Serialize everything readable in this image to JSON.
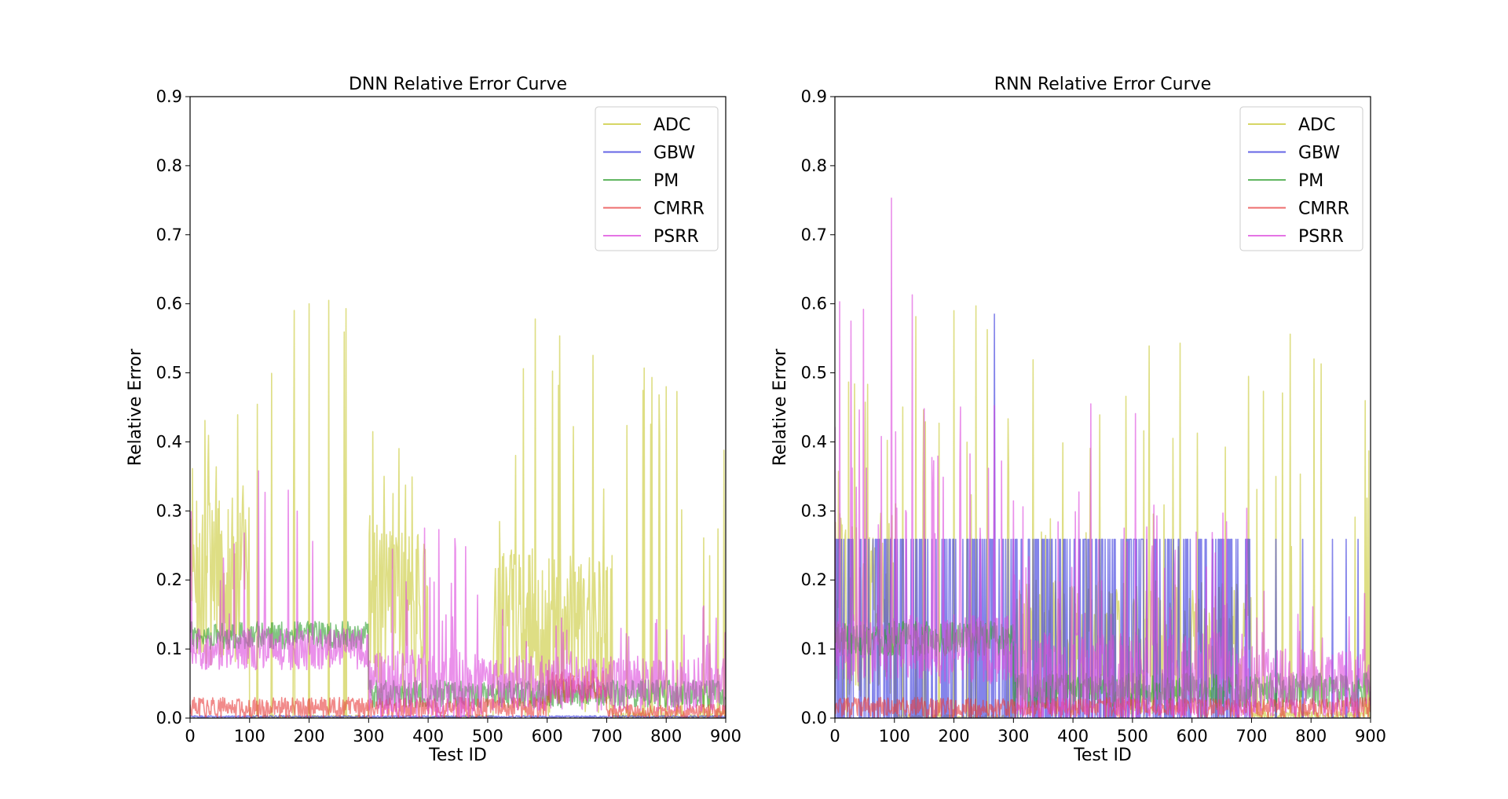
{
  "figure": {
    "charts": [
      {
        "id": "dnn",
        "title": "DNN Relative Error Curve",
        "xlabel": "Test ID",
        "ylabel": "Relative Error",
        "xlim": [
          0,
          900
        ],
        "ylim": [
          0,
          0.9
        ],
        "xticks": [
          0,
          100,
          200,
          300,
          400,
          500,
          600,
          700,
          800,
          900
        ],
        "yticks": [
          0.0,
          0.1,
          0.2,
          0.3,
          0.4,
          0.5,
          0.6,
          0.7,
          0.8,
          0.9
        ],
        "legend": [
          "ADC",
          "GBW",
          "PM",
          "CMRR",
          "PSRR"
        ]
      },
      {
        "id": "rnn",
        "title": "RNN Relative Error Curve",
        "xlabel": "Test ID",
        "ylabel": "Relative Error",
        "xlim": [
          0,
          900
        ],
        "ylim": [
          0,
          0.9
        ],
        "xticks": [
          0,
          100,
          200,
          300,
          400,
          500,
          600,
          700,
          800,
          900
        ],
        "yticks": [
          0.0,
          0.1,
          0.2,
          0.3,
          0.4,
          0.5,
          0.6,
          0.7,
          0.8,
          0.9
        ],
        "legend": [
          "ADC",
          "GBW",
          "PM",
          "CMRR",
          "PSRR"
        ]
      }
    ]
  },
  "chart_data": [
    {
      "type": "line",
      "title": "DNN Relative Error Curve",
      "xlabel": "Test ID",
      "ylabel": "Relative Error",
      "xlim": [
        0,
        900
      ],
      "ylim": [
        0,
        0.9
      ],
      "grid": false,
      "legend_position": "top-right",
      "series": [
        {
          "name": "ADC",
          "color": "#c8c832",
          "alpha": 0.6,
          "segments": [
            {
              "x": [
                0,
                100
              ],
              "base": 0.2,
              "spread": 0.25,
              "spike_prob": 0.15,
              "spike_max": 0.49
            },
            {
              "x": [
                100,
                300
              ],
              "base": 0.0,
              "spread": 0.01,
              "spike_prob": 0.03,
              "spike_max": 0.6
            },
            {
              "x": [
                300,
                400
              ],
              "base": 0.15,
              "spread": 0.25,
              "spike_prob": 0.12,
              "spike_max": 0.43
            },
            {
              "x": [
                400,
                510
              ],
              "base": 0.0,
              "spread": 0.01,
              "spike_prob": 0.0,
              "spike_max": 0.0
            },
            {
              "x": [
                510,
                710
              ],
              "base": 0.12,
              "spread": 0.25,
              "spike_prob": 0.08,
              "spike_max": 0.58
            },
            {
              "x": [
                710,
                900
              ],
              "base": 0.0,
              "spread": 0.02,
              "spike_prob": 0.05,
              "spike_max": 0.5
            }
          ],
          "peaks": [
            [
              200,
              0.6
            ],
            [
              233,
              0.605
            ],
            [
              262,
              0.593
            ],
            [
              580,
              0.578
            ],
            [
              560,
              0.506
            ],
            [
              763,
              0.507
            ],
            [
              800,
              0.48
            ],
            [
              818,
              0.473
            ],
            [
              897,
              0.388
            ]
          ]
        },
        {
          "name": "GBW",
          "color": "#3232dc",
          "alpha": 0.6,
          "segments": [
            {
              "x": [
                0,
                900
              ],
              "base": 0.002,
              "spread": 0.003,
              "spike_prob": 0.0,
              "spike_max": 0.0
            }
          ],
          "peaks": []
        },
        {
          "name": "PM",
          "color": "#2e9e2e",
          "alpha": 0.6,
          "segments": [
            {
              "x": [
                0,
                300
              ],
              "base": 0.12,
              "spread": 0.04,
              "spike_prob": 0.0,
              "spike_max": 0.0
            },
            {
              "x": [
                300,
                900
              ],
              "base": 0.035,
              "spread": 0.04,
              "spike_prob": 0.0,
              "spike_max": 0.0
            }
          ],
          "peaks": []
        },
        {
          "name": "CMRR",
          "color": "#e83c3c",
          "alpha": 0.6,
          "segments": [
            {
              "x": [
                0,
                600
              ],
              "base": 0.015,
              "spread": 0.03,
              "spike_prob": 0.0,
              "spike_max": 0.0
            },
            {
              "x": [
                600,
                700
              ],
              "base": 0.045,
              "spread": 0.05,
              "spike_prob": 0.0,
              "spike_max": 0.0
            },
            {
              "x": [
                700,
                900
              ],
              "base": 0.01,
              "spread": 0.02,
              "spike_prob": 0.0,
              "spike_max": 0.0
            }
          ],
          "peaks": []
        },
        {
          "name": "PSRR",
          "color": "#dc46dc",
          "alpha": 0.6,
          "segments": [
            {
              "x": [
                0,
                300
              ],
              "base": 0.1,
              "spread": 0.06,
              "spike_prob": 0.05,
              "spike_max": 0.33
            },
            {
              "x": [
                300,
                500
              ],
              "base": 0.05,
              "spread": 0.1,
              "spike_prob": 0.08,
              "spike_max": 0.28
            },
            {
              "x": [
                500,
                900
              ],
              "base": 0.05,
              "spread": 0.08,
              "spike_prob": 0.05,
              "spike_max": 0.18
            }
          ],
          "peaks": [
            [
              115,
              0.358
            ],
            [
              165,
              0.33
            ],
            [
              418,
              0.273
            ],
            [
              445,
              0.26
            ]
          ]
        }
      ]
    },
    {
      "type": "line",
      "title": "RNN Relative Error Curve",
      "xlabel": "Test ID",
      "ylabel": "Relative Error",
      "xlim": [
        0,
        900
      ],
      "ylim": [
        0,
        0.9
      ],
      "grid": false,
      "legend_position": "top-right",
      "series": [
        {
          "name": "ADC",
          "color": "#c8c832",
          "alpha": 0.6,
          "segments": [
            {
              "x": [
                0,
                100
              ],
              "base": 0.15,
              "spread": 0.3,
              "spike_prob": 0.1,
              "spike_max": 0.5
            },
            {
              "x": [
                100,
                300
              ],
              "base": 0.0,
              "spread": 0.01,
              "spike_prob": 0.04,
              "spike_max": 0.59
            },
            {
              "x": [
                300,
                700
              ],
              "base": 0.1,
              "spread": 0.2,
              "spike_prob": 0.07,
              "spike_max": 0.54
            },
            {
              "x": [
                700,
                900
              ],
              "base": 0.0,
              "spread": 0.02,
              "spike_prob": 0.04,
              "spike_max": 0.55
            }
          ],
          "peaks": [
            [
              200,
              0.59
            ],
            [
              237,
              0.597
            ],
            [
              580,
              0.543
            ],
            [
              765,
              0.556
            ],
            [
              805,
              0.52
            ],
            [
              817,
              0.513
            ],
            [
              897,
              0.387
            ]
          ]
        },
        {
          "name": "GBW",
          "color": "#3232dc",
          "alpha": 0.6,
          "segments": [
            {
              "x": [
                0,
                300
              ],
              "base": 0.0,
              "spread": 0.0,
              "spike_prob": 0.35,
              "spike_max": 0.259,
              "flat_top": true
            },
            {
              "x": [
                300,
                700
              ],
              "base": 0.0,
              "spread": 0.0,
              "spike_prob": 0.3,
              "spike_max": 0.259,
              "flat_top": true
            },
            {
              "x": [
                700,
                900
              ],
              "base": 0.0,
              "spread": 0.0,
              "spike_prob": 0.04,
              "spike_max": 0.259,
              "flat_top": true
            }
          ],
          "peaks": [
            [
              268,
              0.585
            ]
          ]
        },
        {
          "name": "PM",
          "color": "#2e9e2e",
          "alpha": 0.6,
          "segments": [
            {
              "x": [
                0,
                300
              ],
              "base": 0.115,
              "spread": 0.05,
              "spike_prob": 0.0,
              "spike_max": 0.0
            },
            {
              "x": [
                300,
                900
              ],
              "base": 0.04,
              "spread": 0.05,
              "spike_prob": 0.0,
              "spike_max": 0.0
            }
          ],
          "peaks": []
        },
        {
          "name": "CMRR",
          "color": "#e83c3c",
          "alpha": 0.6,
          "segments": [
            {
              "x": [
                0,
                900
              ],
              "base": 0.015,
              "spread": 0.03,
              "spike_prob": 0.0,
              "spike_max": 0.0
            }
          ],
          "peaks": []
        },
        {
          "name": "PSRR",
          "color": "#dc46dc",
          "alpha": 0.6,
          "segments": [
            {
              "x": [
                0,
                300
              ],
              "base": 0.1,
              "spread": 0.1,
              "spike_prob": 0.12,
              "spike_max": 0.46
            },
            {
              "x": [
                300,
                700
              ],
              "base": 0.05,
              "spread": 0.15,
              "spike_prob": 0.1,
              "spike_max": 0.33
            },
            {
              "x": [
                700,
                900
              ],
              "base": 0.05,
              "spread": 0.1,
              "spike_prob": 0.05,
              "spike_max": 0.2
            }
          ],
          "peaks": [
            [
              8,
              0.603
            ],
            [
              27,
              0.575
            ],
            [
              48,
              0.592
            ],
            [
              95,
              0.753
            ],
            [
              130,
              0.613
            ],
            [
              430,
              0.455
            ],
            [
              505,
              0.441
            ]
          ]
        }
      ]
    }
  ]
}
